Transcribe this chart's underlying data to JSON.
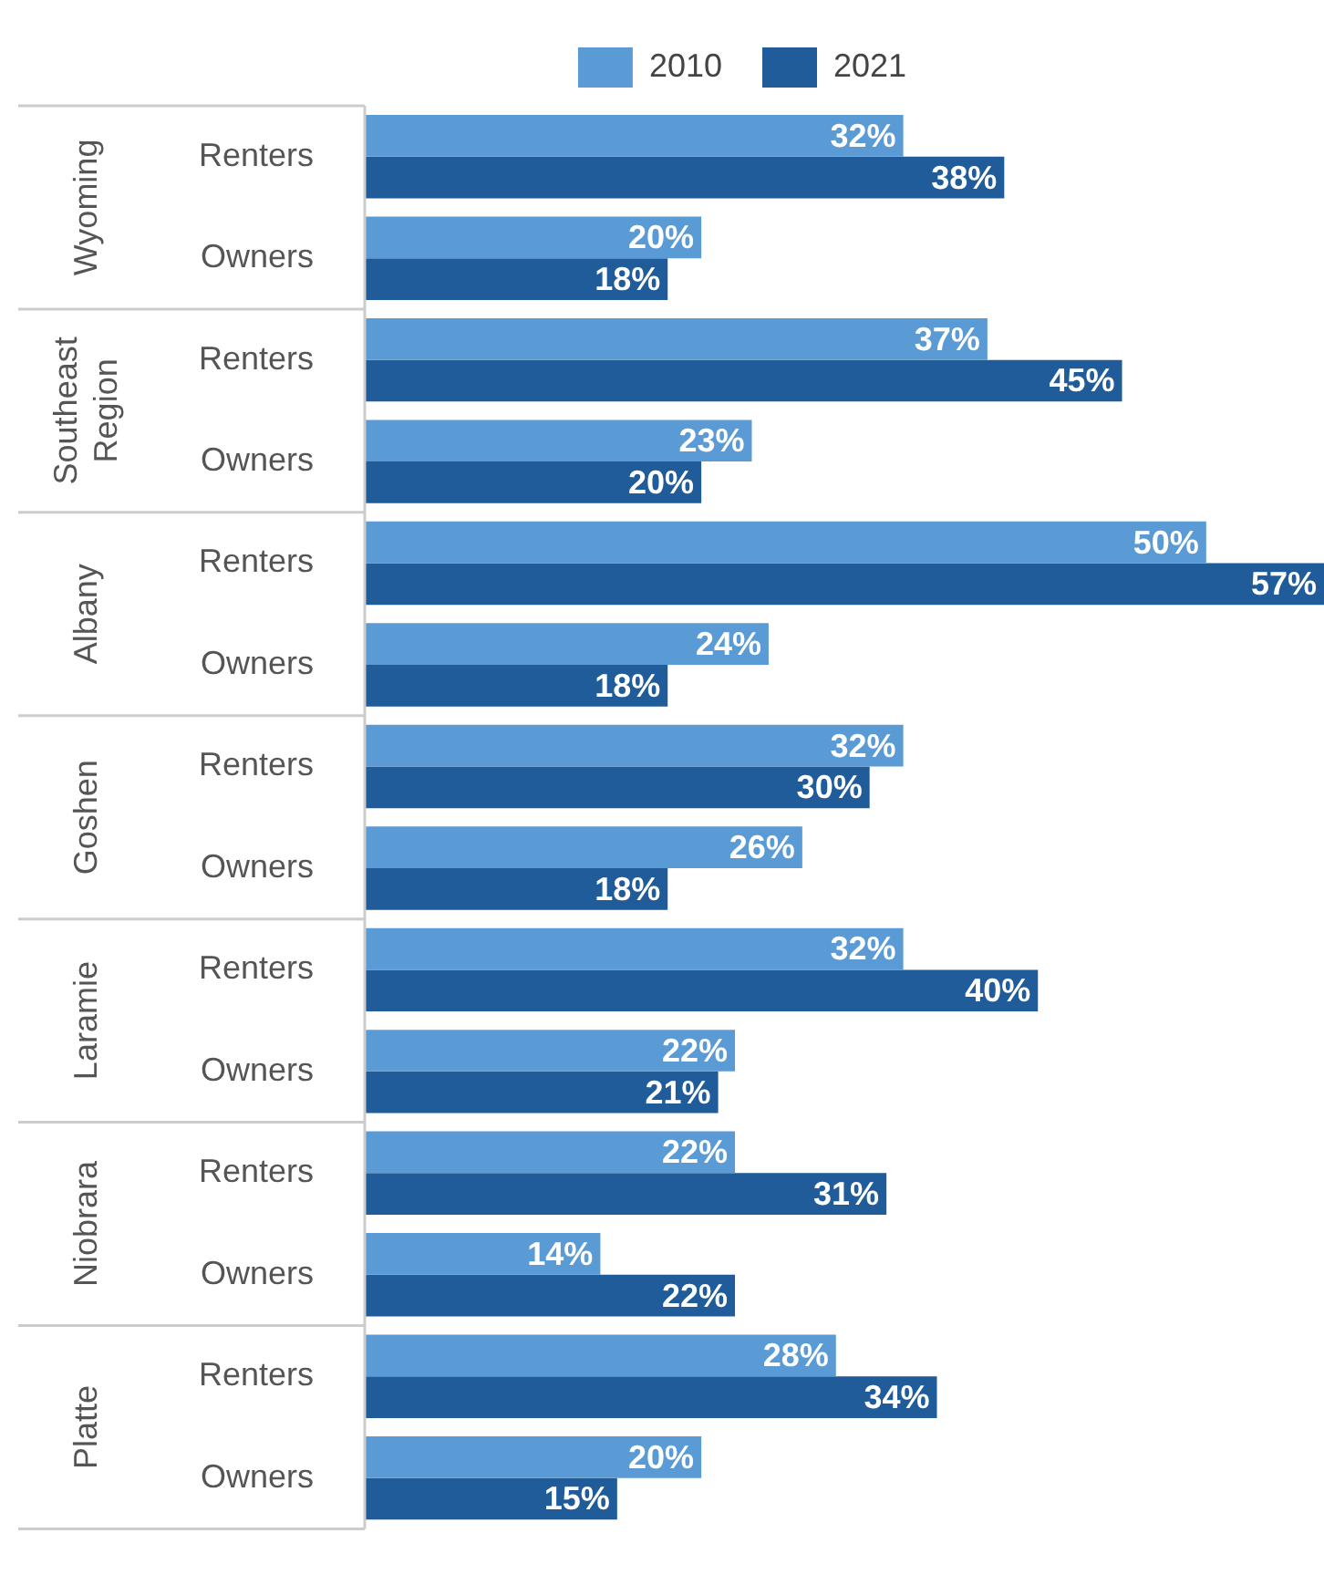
{
  "chart_data": {
    "type": "bar",
    "orientation": "horizontal",
    "legend": "top",
    "categories": [
      "Renters",
      "Owners",
      "Renters",
      "Owners",
      "Renters",
      "Owners",
      "Renters",
      "Owners",
      "Renters",
      "Owners",
      "Renters",
      "Owners",
      "Renters",
      "Owners"
    ],
    "annotations": [
      "Wyoming",
      "Southeast Region",
      "Albany",
      "Goshen",
      "Laramie",
      "Niobrara",
      "Platte"
    ],
    "series": [
      {
        "name": "2010",
        "color": "#5b9bd5",
        "values": [
          32,
          20,
          37,
          23,
          50,
          24,
          32,
          26,
          32,
          22,
          22,
          14,
          28,
          20
        ],
        "value_labels": [
          "32%",
          "20%",
          "37%",
          "23%",
          "50%",
          "24%",
          "32%",
          "26%",
          "32%",
          "22%",
          "22%",
          "14%",
          "28%",
          "20%"
        ]
      },
      {
        "name": "2021",
        "color": "#1f5c99",
        "values": [
          38,
          18,
          45,
          20,
          57,
          18,
          30,
          18,
          40,
          21,
          31,
          22,
          34,
          15
        ],
        "value_labels": [
          "38%",
          "18%",
          "45%",
          "20%",
          "57%",
          "18%",
          "30%",
          "18%",
          "40%",
          "21%",
          "31%",
          "22%",
          "34%",
          "15%"
        ]
      }
    ]
  }
}
